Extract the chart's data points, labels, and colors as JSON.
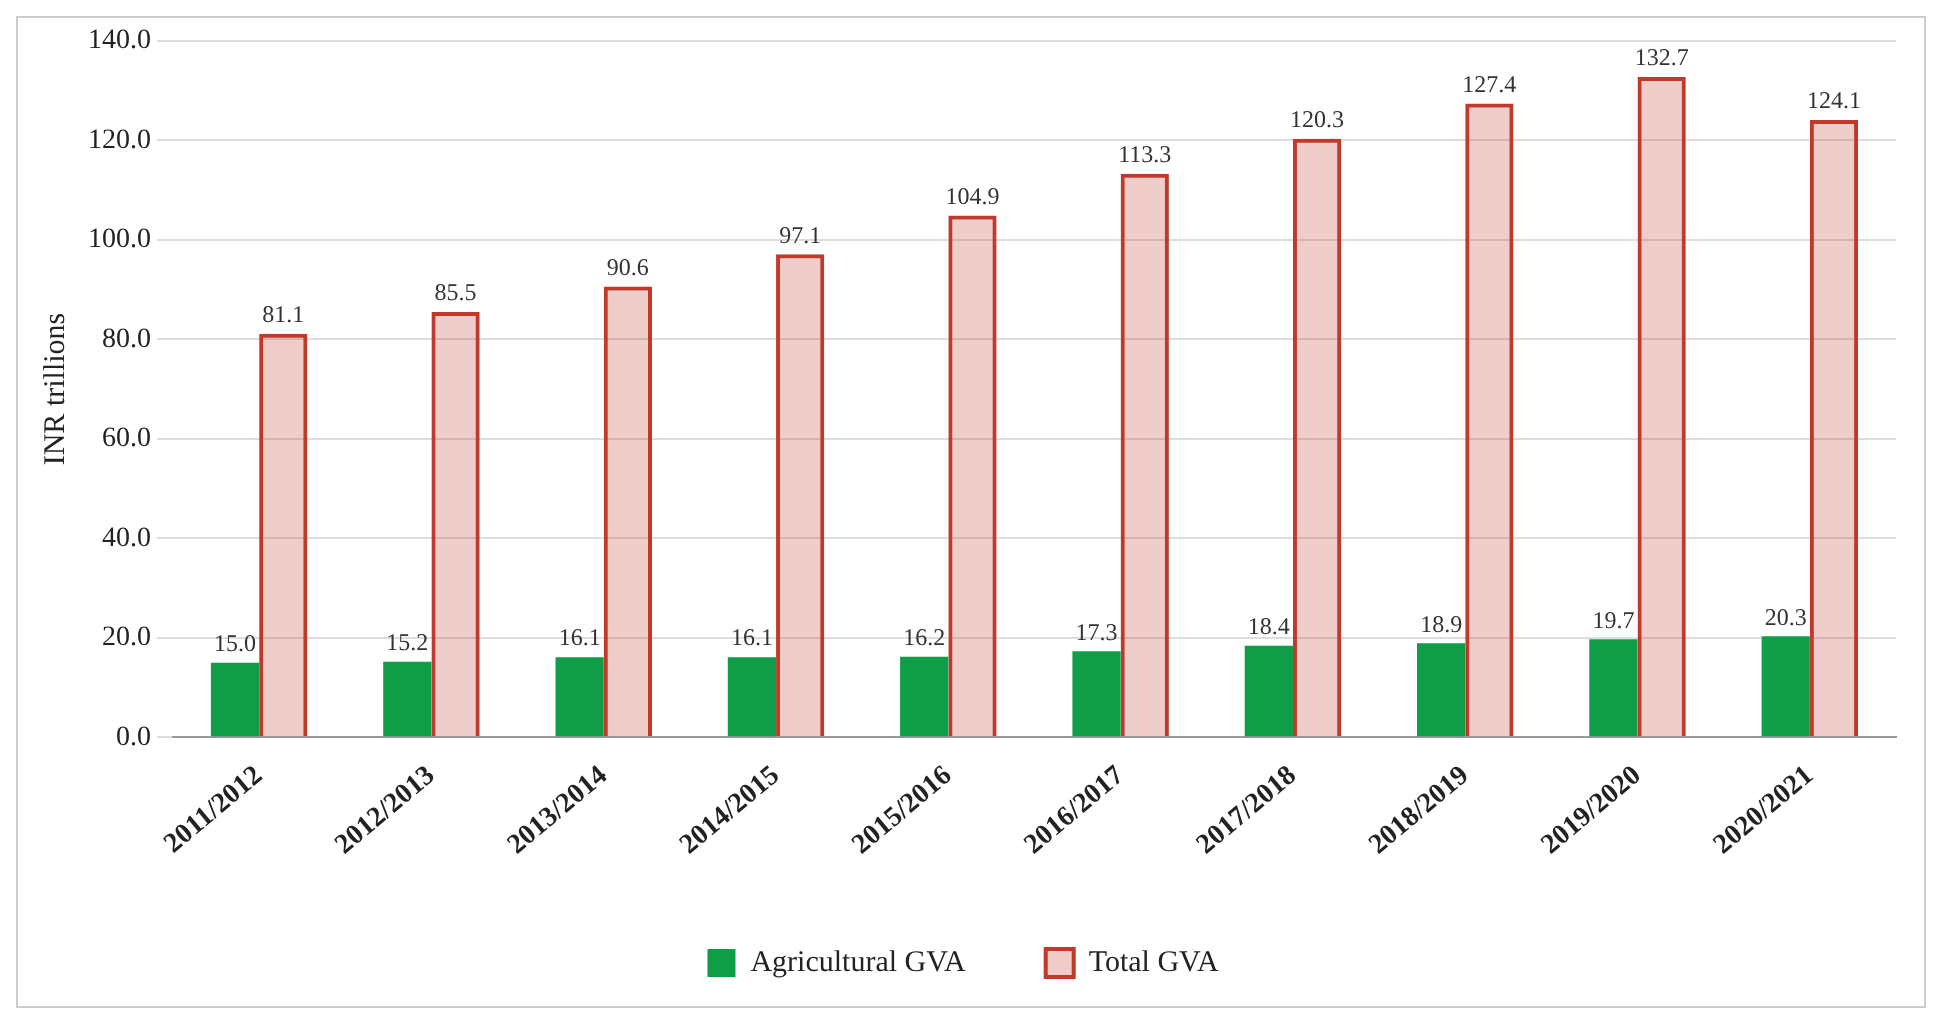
{
  "chart_data": {
    "type": "bar",
    "ylabel": "INR trillions",
    "categories": [
      "2011/2012",
      "2012/2013",
      "2013/2014",
      "2014/2015",
      "2015/2016",
      "2016/2017",
      "2017/2018",
      "2018/2019",
      "2019/2020",
      "2020/2021"
    ],
    "series": [
      {
        "name": "Agricultural GVA",
        "color": "#0f9d48",
        "values": [
          15.0,
          15.2,
          16.1,
          16.1,
          16.2,
          17.3,
          18.4,
          18.9,
          19.7,
          20.3
        ],
        "value_labels": [
          "15.0",
          "15.2",
          "16.1",
          "16.1",
          "16.2",
          "17.3",
          "18.4",
          "18.9",
          "19.7",
          "20.3"
        ]
      },
      {
        "name": "Total GVA",
        "color": "#c0392b",
        "values": [
          81.1,
          85.5,
          90.6,
          97.1,
          104.9,
          113.3,
          120.3,
          127.4,
          132.7,
          124.1
        ],
        "value_labels": [
          "81.1",
          "85.5",
          "90.6",
          "97.1",
          "104.9",
          "113.3",
          "120.3",
          "127.4",
          "132.7",
          "124.1"
        ]
      }
    ],
    "ylim": [
      0,
      140
    ],
    "yticks": [
      {
        "value": 0,
        "label": "0.0"
      },
      {
        "value": 20,
        "label": "20.0"
      },
      {
        "value": 40,
        "label": "40.0"
      },
      {
        "value": 60,
        "label": "60.0"
      },
      {
        "value": 80,
        "label": "80.0"
      },
      {
        "value": 100,
        "label": "100.0"
      },
      {
        "value": 120,
        "label": "120.0"
      },
      {
        "value": 140,
        "label": "140.0"
      }
    ],
    "grid": "y",
    "legend": "bottom"
  }
}
